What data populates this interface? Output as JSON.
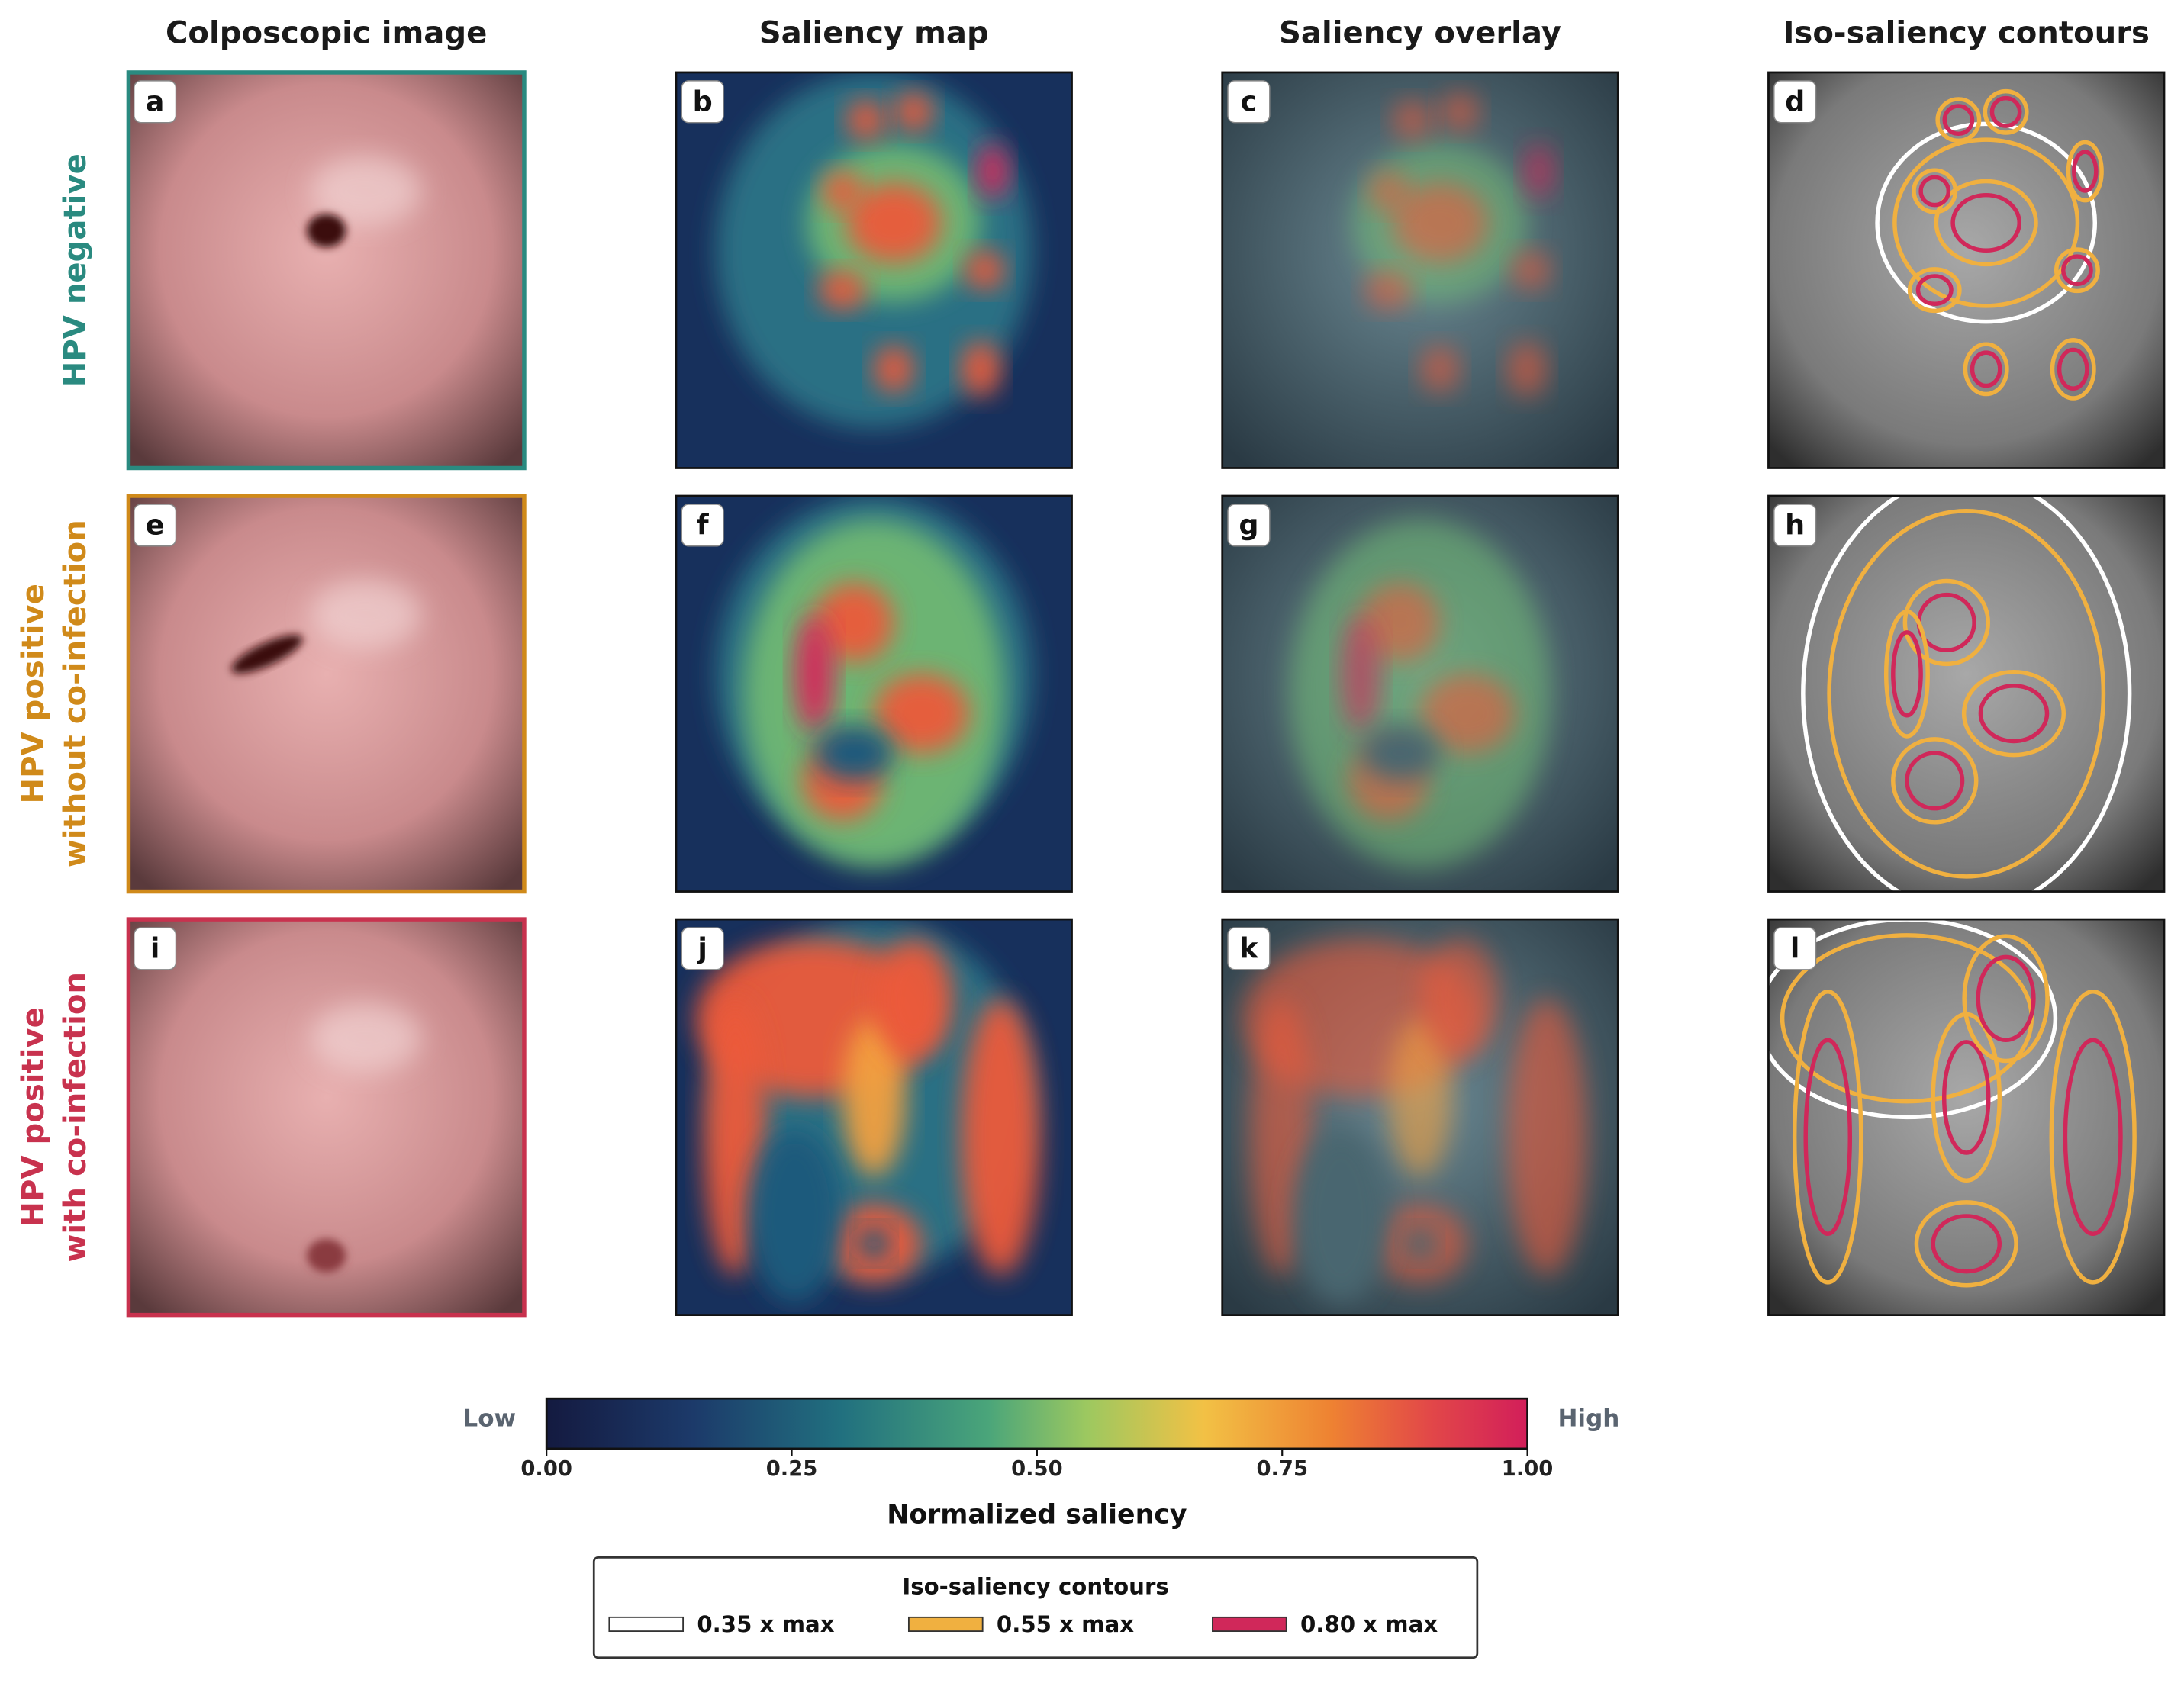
{
  "columns": [
    "Colposcopic image",
    "Saliency map",
    "Saliency overlay",
    "Iso-saliency contours"
  ],
  "rows": [
    {
      "label_lines": [
        "HPV negative"
      ],
      "color": "#2a8a80",
      "panels": [
        "a",
        "b",
        "c",
        "d"
      ]
    },
    {
      "label_lines": [
        "HPV positive",
        "without co-infection"
      ],
      "color": "#d08a1a",
      "panels": [
        "e",
        "f",
        "g",
        "h"
      ]
    },
    {
      "label_lines": [
        "HPV positive",
        "with co-infection"
      ],
      "color": "#c8324e",
      "panels": [
        "i",
        "j",
        "k",
        "l"
      ]
    }
  ],
  "colorbar": {
    "title": "Normalized saliency",
    "low_label": "Low",
    "high_label": "High",
    "lim": [
      0,
      1
    ],
    "ticks": [
      {
        "value": 0,
        "label": "0.00"
      },
      {
        "value": 0.25,
        "label": "0.25"
      },
      {
        "value": 0.5,
        "label": "0.50"
      },
      {
        "value": 0.75,
        "label": "0.75"
      },
      {
        "value": 1,
        "label": "1.00"
      }
    ]
  },
  "legend": {
    "title": "Iso-saliency contours",
    "entries": [
      {
        "label": "0.35 x max",
        "color": "#ffffff"
      },
      {
        "label": "0.55 x max",
        "color": "#f0b040"
      },
      {
        "label": "0.80 x max",
        "color": "#d0285a"
      }
    ]
  }
}
